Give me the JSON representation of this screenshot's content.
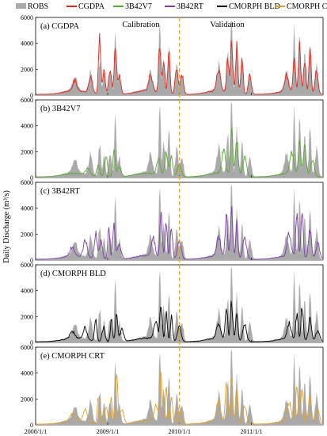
{
  "chart_data": {
    "type": "area",
    "ylabel": "Daily Discharge (m³/s)",
    "period_labels": [
      "Calibration",
      "Validation"
    ],
    "split_date": "2010/1/1",
    "x_ticks": [
      "2008/1/1",
      "2009/1/1",
      "2010/1/1",
      "2011/1/1"
    ],
    "x_range": [
      "2008/1/1",
      "2011/12/31"
    ],
    "y_ticks": [
      "0",
      "2000",
      "4000",
      "6000"
    ],
    "ylim": [
      0,
      6000
    ],
    "legend": [
      {
        "name": "ROBS",
        "color": "#aaaaaa"
      },
      {
        "name": "CGDPA",
        "color": "#e8261d"
      },
      {
        "name": "3B42V7",
        "color": "#5aa832"
      },
      {
        "name": "3B42RT",
        "color": "#7b3fa8"
      },
      {
        "name": "CMORPH BLD",
        "color": "#000000"
      },
      {
        "name": "CMORPH CRT",
        "color": "#e3a028"
      }
    ],
    "observed_series": "ROBS",
    "panels": [
      {
        "label": "(a) CGDPA",
        "series": "CGDPA",
        "color": "#e8261d",
        "show_period_labels": true,
        "peaks": [
          [
            0.15,
            800,
            0.01
          ],
          [
            0.21,
            1300,
            0.01
          ],
          [
            0.245,
            4400,
            0.006
          ],
          [
            0.262,
            2100,
            0.006
          ],
          [
            0.285,
            1800,
            0.008
          ],
          [
            0.305,
            3700,
            0.006
          ],
          [
            0.32,
            1500,
            0.008
          ],
          [
            0.44,
            1200,
            0.01
          ],
          [
            0.475,
            3800,
            0.006
          ],
          [
            0.49,
            2600,
            0.006
          ],
          [
            0.51,
            3300,
            0.006
          ],
          [
            0.54,
            2100,
            0.008
          ],
          [
            0.56,
            1500,
            0.008
          ],
          [
            0.7,
            1600,
            0.01
          ],
          [
            0.735,
            2600,
            0.006
          ],
          [
            0.75,
            4200,
            0.006
          ],
          [
            0.77,
            3600,
            0.006
          ],
          [
            0.79,
            2900,
            0.006
          ],
          [
            0.82,
            1500,
            0.008
          ],
          [
            0.96,
            1200,
            0.01
          ],
          [
            0.99,
            2600,
            0.006
          ],
          [
            1.01,
            3600,
            0.006
          ],
          [
            1.03,
            2700,
            0.006
          ],
          [
            1.05,
            3300,
            0.006
          ],
          [
            1.075,
            1800,
            0.008
          ]
        ]
      },
      {
        "label": "(b) 3B42V7",
        "series": "3B42V7",
        "color": "#5aa832",
        "show_period_labels": false,
        "peaks": [
          [
            0.2,
            500,
            0.012
          ],
          [
            0.24,
            900,
            0.008
          ],
          [
            0.27,
            1500,
            0.008
          ],
          [
            0.3,
            2100,
            0.006
          ],
          [
            0.32,
            800,
            0.01
          ],
          [
            0.47,
            1200,
            0.01
          ],
          [
            0.5,
            1800,
            0.008
          ],
          [
            0.52,
            1500,
            0.008
          ],
          [
            0.55,
            900,
            0.01
          ],
          [
            0.72,
            2000,
            0.01
          ],
          [
            0.75,
            3700,
            0.006
          ],
          [
            0.77,
            2600,
            0.008
          ],
          [
            0.8,
            1500,
            0.01
          ],
          [
            0.98,
            1600,
            0.01
          ],
          [
            1.01,
            2600,
            0.006
          ],
          [
            1.03,
            2200,
            0.008
          ],
          [
            1.06,
            1200,
            0.01
          ]
        ]
      },
      {
        "label": "(c) 3B42RT",
        "series": "3B42RT",
        "color": "#7b3fa8",
        "show_period_labels": false,
        "peaks": [
          [
            0.14,
            700,
            0.012
          ],
          [
            0.19,
            1300,
            0.01
          ],
          [
            0.23,
            1900,
            0.008
          ],
          [
            0.25,
            1300,
            0.008
          ],
          [
            0.28,
            2300,
            0.006
          ],
          [
            0.3,
            2600,
            0.006
          ],
          [
            0.32,
            1200,
            0.01
          ],
          [
            0.45,
            1400,
            0.01
          ],
          [
            0.48,
            3800,
            0.006
          ],
          [
            0.5,
            2800,
            0.006
          ],
          [
            0.52,
            2500,
            0.006
          ],
          [
            0.55,
            1500,
            0.01
          ],
          [
            0.7,
            1500,
            0.01
          ],
          [
            0.73,
            3200,
            0.006
          ],
          [
            0.75,
            3600,
            0.006
          ],
          [
            0.77,
            2700,
            0.006
          ],
          [
            0.8,
            1700,
            0.01
          ],
          [
            0.97,
            1700,
            0.01
          ],
          [
            1.0,
            3200,
            0.006
          ],
          [
            1.02,
            3500,
            0.006
          ],
          [
            1.05,
            2300,
            0.008
          ],
          [
            1.08,
            1200,
            0.01
          ]
        ]
      },
      {
        "label": "(d) CMORPH BLD",
        "series": "CMORPH BLD",
        "color": "#000000",
        "show_period_labels": false,
        "peaks": [
          [
            0.14,
            500,
            0.012
          ],
          [
            0.19,
            900,
            0.01
          ],
          [
            0.23,
            1700,
            0.006
          ],
          [
            0.26,
            1100,
            0.008
          ],
          [
            0.29,
            1600,
            0.006
          ],
          [
            0.31,
            2300,
            0.006
          ],
          [
            0.33,
            900,
            0.01
          ],
          [
            0.46,
            1300,
            0.01
          ],
          [
            0.48,
            2700,
            0.006
          ],
          [
            0.5,
            2000,
            0.006
          ],
          [
            0.52,
            1900,
            0.006
          ],
          [
            0.55,
            1100,
            0.01
          ],
          [
            0.7,
            1200,
            0.01
          ],
          [
            0.73,
            2600,
            0.006
          ],
          [
            0.75,
            2900,
            0.006
          ],
          [
            0.77,
            2200,
            0.006
          ],
          [
            0.8,
            1300,
            0.01
          ],
          [
            0.97,
            1200,
            0.01
          ],
          [
            1.0,
            2000,
            0.006
          ],
          [
            1.02,
            2500,
            0.006
          ],
          [
            1.05,
            1700,
            0.008
          ],
          [
            1.08,
            900,
            0.01
          ]
        ]
      },
      {
        "label": "(e) CMORPH CRT",
        "series": "CMORPH CRT",
        "color": "#e3a028",
        "show_period_labels": false,
        "peaks": [
          [
            0.14,
            600,
            0.012
          ],
          [
            0.19,
            1100,
            0.01
          ],
          [
            0.24,
            2000,
            0.006
          ],
          [
            0.27,
            1300,
            0.008
          ],
          [
            0.29,
            2100,
            0.006
          ],
          [
            0.31,
            3700,
            0.006
          ],
          [
            0.33,
            1100,
            0.01
          ],
          [
            0.46,
            1300,
            0.01
          ],
          [
            0.48,
            3900,
            0.006
          ],
          [
            0.5,
            2600,
            0.006
          ],
          [
            0.52,
            2200,
            0.006
          ],
          [
            0.55,
            1300,
            0.01
          ],
          [
            0.7,
            1400,
            0.01
          ],
          [
            0.73,
            2800,
            0.006
          ],
          [
            0.75,
            3300,
            0.006
          ],
          [
            0.77,
            2400,
            0.006
          ],
          [
            0.8,
            1400,
            0.01
          ],
          [
            0.97,
            1400,
            0.01
          ],
          [
            1.0,
            2700,
            0.006
          ],
          [
            1.02,
            3000,
            0.006
          ],
          [
            1.05,
            2000,
            0.008
          ],
          [
            1.08,
            1100,
            0.01
          ]
        ]
      }
    ],
    "observed_peaks": [
      [
        0.15,
        1000,
        0.012
      ],
      [
        0.21,
        1500,
        0.01
      ],
      [
        0.245,
        2500,
        0.006
      ],
      [
        0.262,
        1500,
        0.006
      ],
      [
        0.285,
        1800,
        0.008
      ],
      [
        0.305,
        4000,
        0.005
      ],
      [
        0.32,
        1400,
        0.008
      ],
      [
        0.44,
        1500,
        0.01
      ],
      [
        0.475,
        5000,
        0.005
      ],
      [
        0.49,
        2800,
        0.006
      ],
      [
        0.51,
        3200,
        0.006
      ],
      [
        0.54,
        2000,
        0.008
      ],
      [
        0.56,
        1500,
        0.008
      ],
      [
        0.7,
        1800,
        0.01
      ],
      [
        0.735,
        3000,
        0.006
      ],
      [
        0.75,
        5500,
        0.005
      ],
      [
        0.77,
        3500,
        0.006
      ],
      [
        0.79,
        2800,
        0.006
      ],
      [
        0.82,
        1500,
        0.008
      ],
      [
        0.96,
        1500,
        0.01
      ],
      [
        0.99,
        4200,
        0.005
      ],
      [
        1.01,
        3800,
        0.006
      ],
      [
        1.03,
        2800,
        0.006
      ],
      [
        1.05,
        3300,
        0.006
      ],
      [
        1.075,
        2000,
        0.008
      ]
    ]
  }
}
